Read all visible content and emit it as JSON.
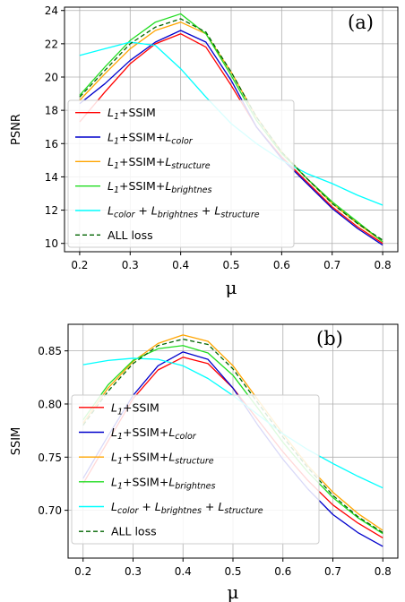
{
  "chart_data": [
    {
      "type": "line",
      "panel_label": "(a)",
      "xlabel": "μ",
      "ylabel": "PSNR",
      "xlim": [
        0.17,
        0.83
      ],
      "ylim": [
        9.5,
        24.2
      ],
      "xticks": [
        "0.2",
        "0.3",
        "0.4",
        "0.5",
        "0.6",
        "0.7",
        "0.8"
      ],
      "yticks": [
        "10",
        "12",
        "14",
        "16",
        "18",
        "20",
        "22",
        "24"
      ],
      "grid": true,
      "legend": "lower-left",
      "x": [
        0.2,
        0.25,
        0.3,
        0.35,
        0.4,
        0.45,
        0.5,
        0.55,
        0.6,
        0.65,
        0.7,
        0.75,
        0.8
      ],
      "series": [
        {
          "name": "L1+SSIM",
          "legend_parts": [
            [
              "L"
            ],
            [
              "1",
              "sub"
            ],
            [
              "+SSIM"
            ]
          ],
          "color": "#ff0000",
          "dash": "",
          "values": [
            17.3,
            19.1,
            20.8,
            22.0,
            22.6,
            21.8,
            19.5,
            17.0,
            15.2,
            13.7,
            12.2,
            11.0,
            10.0
          ]
        },
        {
          "name": "L1+SSIM+Lcolor",
          "legend_parts": [
            [
              "L"
            ],
            [
              "1",
              "sub"
            ],
            [
              "+SSIM+"
            ],
            [
              "L"
            ],
            [
              "color",
              "sub"
            ]
          ],
          "color": "#0000cc",
          "dash": "",
          "values": [
            18.4,
            19.6,
            21.0,
            22.1,
            22.8,
            22.1,
            19.8,
            17.0,
            15.1,
            13.6,
            12.1,
            10.9,
            9.9
          ]
        },
        {
          "name": "L1+SSIM+Lstructure",
          "legend_parts": [
            [
              "L"
            ],
            [
              "1",
              "sub"
            ],
            [
              "+SSIM+"
            ],
            [
              "L"
            ],
            [
              "structure",
              "sub"
            ]
          ],
          "color": "#ffa500",
          "dash": "",
          "values": [
            18.6,
            20.2,
            21.7,
            22.8,
            23.3,
            22.6,
            20.3,
            17.6,
            15.5,
            13.9,
            12.4,
            11.2,
            10.1
          ]
        },
        {
          "name": "L1+SSIM+Lbrightnes",
          "legend_parts": [
            [
              "L"
            ],
            [
              "1",
              "sub"
            ],
            [
              "+SSIM+"
            ],
            [
              "L"
            ],
            [
              "brightnes",
              "sub"
            ]
          ],
          "color": "#22dd22",
          "dash": "",
          "values": [
            18.9,
            20.6,
            22.2,
            23.3,
            23.8,
            22.6,
            20.1,
            17.4,
            15.4,
            13.9,
            12.5,
            11.3,
            10.1
          ]
        },
        {
          "name": "Lcolor + Lbrightnes + Lstructure",
          "legend_parts": [
            [
              "L"
            ],
            [
              "color",
              "sub"
            ],
            [
              " + "
            ],
            [
              "L"
            ],
            [
              "brightnes",
              "sub"
            ],
            [
              " + "
            ],
            [
              "L"
            ],
            [
              "structure",
              "sub"
            ]
          ],
          "color": "#00ffff",
          "dash": "",
          "values": [
            21.3,
            21.7,
            22.1,
            21.9,
            20.5,
            18.8,
            17.2,
            16.0,
            15.0,
            14.2,
            13.6,
            12.9,
            12.3
          ]
        },
        {
          "name": "ALL loss",
          "legend_parts": [
            [
              "ALL loss"
            ]
          ],
          "color": "#006400",
          "dash": "5,3",
          "values": [
            18.8,
            20.4,
            22.0,
            23.0,
            23.5,
            22.7,
            20.3,
            17.6,
            15.5,
            13.9,
            12.4,
            11.2,
            10.2
          ]
        }
      ]
    },
    {
      "type": "line",
      "panel_label": "(b)",
      "xlabel": "μ",
      "ylabel": "SSIM",
      "xlim": [
        0.17,
        0.83
      ],
      "ylim": [
        0.655,
        0.875
      ],
      "xticks": [
        "0.2",
        "0.3",
        "0.4",
        "0.5",
        "0.6",
        "0.7",
        "0.8"
      ],
      "yticks": [
        "0.70",
        "0.75",
        "0.80",
        "0.85"
      ],
      "grid": true,
      "legend": "lower-left",
      "x": [
        0.2,
        0.25,
        0.3,
        0.35,
        0.4,
        0.45,
        0.5,
        0.55,
        0.6,
        0.65,
        0.7,
        0.75,
        0.8
      ],
      "series": [
        {
          "name": "L1+SSIM",
          "legend_parts": [
            [
              "L"
            ],
            [
              "1",
              "sub"
            ],
            [
              "+SSIM"
            ]
          ],
          "color": "#ff0000",
          "dash": "",
          "values": [
            0.725,
            0.765,
            0.805,
            0.832,
            0.844,
            0.838,
            0.815,
            0.785,
            0.755,
            0.728,
            0.705,
            0.688,
            0.674
          ]
        },
        {
          "name": "L1+SSIM+Lcolor",
          "legend_parts": [
            [
              "L"
            ],
            [
              "1",
              "sub"
            ],
            [
              "+SSIM+"
            ],
            [
              "L"
            ],
            [
              "color",
              "sub"
            ]
          ],
          "color": "#0000cc",
          "dash": "",
          "values": [
            0.73,
            0.77,
            0.808,
            0.836,
            0.849,
            0.842,
            0.815,
            0.78,
            0.748,
            0.72,
            0.696,
            0.679,
            0.666
          ]
        },
        {
          "name": "L1+SSIM+Lstructure",
          "legend_parts": [
            [
              "L"
            ],
            [
              "1",
              "sub"
            ],
            [
              "+SSIM+"
            ],
            [
              "L"
            ],
            [
              "structure",
              "sub"
            ]
          ],
          "color": "#ffa500",
          "dash": "",
          "values": [
            0.782,
            0.815,
            0.84,
            0.857,
            0.865,
            0.859,
            0.836,
            0.804,
            0.772,
            0.742,
            0.717,
            0.697,
            0.681
          ]
        },
        {
          "name": "L1+SSIM+Lbrightnes",
          "legend_parts": [
            [
              "L"
            ],
            [
              "1",
              "sub"
            ],
            [
              "+SSIM+"
            ],
            [
              "L"
            ],
            [
              "brightnes",
              "sub"
            ]
          ],
          "color": "#22dd22",
          "dash": "",
          "values": [
            0.785,
            0.818,
            0.841,
            0.852,
            0.855,
            0.848,
            0.827,
            0.796,
            0.764,
            0.736,
            0.712,
            0.693,
            0.678
          ]
        },
        {
          "name": "Lcolor + Lbrightnes + Lstructure",
          "legend_parts": [
            [
              "L"
            ],
            [
              "color",
              "sub"
            ],
            [
              " + "
            ],
            [
              "L"
            ],
            [
              "brightnes",
              "sub"
            ],
            [
              " + "
            ],
            [
              "L"
            ],
            [
              "structure",
              "sub"
            ]
          ],
          "color": "#00ffff",
          "dash": "",
          "values": [
            0.837,
            0.841,
            0.843,
            0.842,
            0.836,
            0.824,
            0.808,
            0.79,
            0.772,
            0.757,
            0.744,
            0.732,
            0.721
          ]
        },
        {
          "name": "ALL loss",
          "legend_parts": [
            [
              "ALL loss"
            ]
          ],
          "color": "#006400",
          "dash": "5,3",
          "values": [
            0.78,
            0.812,
            0.838,
            0.855,
            0.861,
            0.856,
            0.833,
            0.801,
            0.769,
            0.74,
            0.714,
            0.694,
            0.679
          ]
        }
      ]
    }
  ]
}
